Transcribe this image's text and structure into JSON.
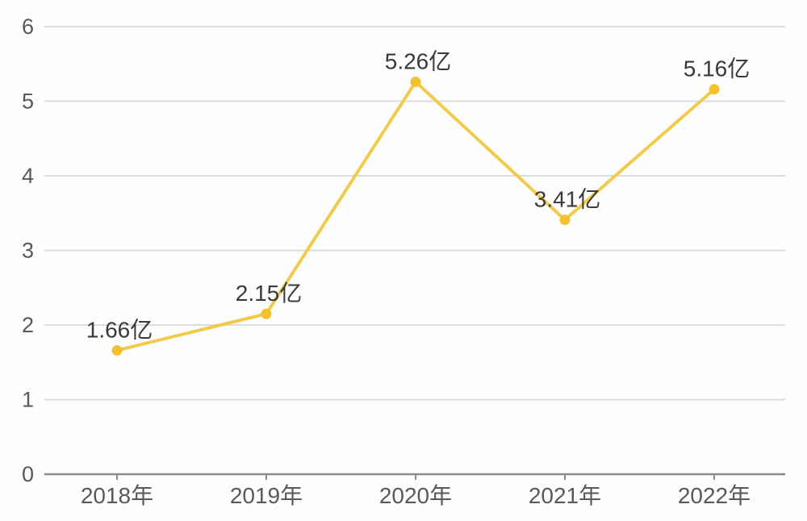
{
  "chart_data": {
    "type": "line",
    "title": "",
    "categories": [
      "2018年",
      "2019年",
      "2020年",
      "2021年",
      "2022年"
    ],
    "values": [
      1.66,
      2.15,
      5.26,
      3.41,
      5.16
    ],
    "data_labels": [
      "1.66亿",
      "2.15亿",
      "5.26亿",
      "3.41亿",
      "5.16亿"
    ],
    "unit_suffix": "亿",
    "y_ticks": [
      0,
      1,
      2,
      3,
      4,
      5,
      6
    ],
    "ylim": [
      0,
      6
    ],
    "grid": "horizontal gridlines only",
    "legend_position": "none",
    "colors": {
      "line": "#F2CA4C",
      "marker": "#F3C130",
      "grid_line": "#DCDCDC",
      "axis_line": "#8A8A8A",
      "tick_label": "#595959",
      "data_label": "#3A3A3A",
      "background": "#FDFDFD"
    }
  }
}
